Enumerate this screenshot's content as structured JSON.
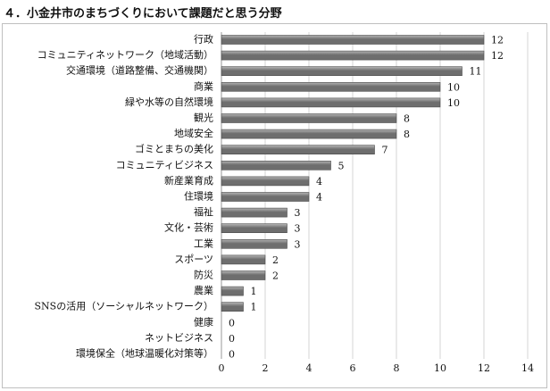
{
  "title": "４．小金井市のまちづくりにおいて課題だと思う分野",
  "chart_data": {
    "type": "bar",
    "orientation": "horizontal",
    "title": "４．小金井市のまちづくりにおいて課題だと思う分野",
    "xlabel": "",
    "ylabel": "",
    "xlim": [
      0,
      14
    ],
    "x_ticks": [
      0,
      2,
      4,
      6,
      8,
      10,
      12,
      14
    ],
    "grid": "vertical",
    "legend": "none",
    "categories": [
      "行政",
      "コミュニティネットワーク（地域活動）",
      "交通環境（道路整備、交通機関）",
      "商業",
      "緑や水等の自然環境",
      "観光",
      "地域安全",
      "ゴミとまちの美化",
      "コミュニティビジネス",
      "新産業育成",
      "住環境",
      "福祉",
      "文化・芸術",
      "工業",
      "スポーツ",
      "防災",
      "農業",
      "SNSの活用（ソーシャルネットワーク）",
      "健康",
      "ネットビジネス",
      "環境保全（地球温暖化対策等）"
    ],
    "values": [
      12,
      12,
      11,
      10,
      10,
      8,
      8,
      7,
      5,
      4,
      4,
      3,
      3,
      3,
      2,
      2,
      1,
      1,
      0,
      0,
      0
    ],
    "bar_color": "#6e6e6e",
    "bar_highlight": "#b5b5b5"
  }
}
